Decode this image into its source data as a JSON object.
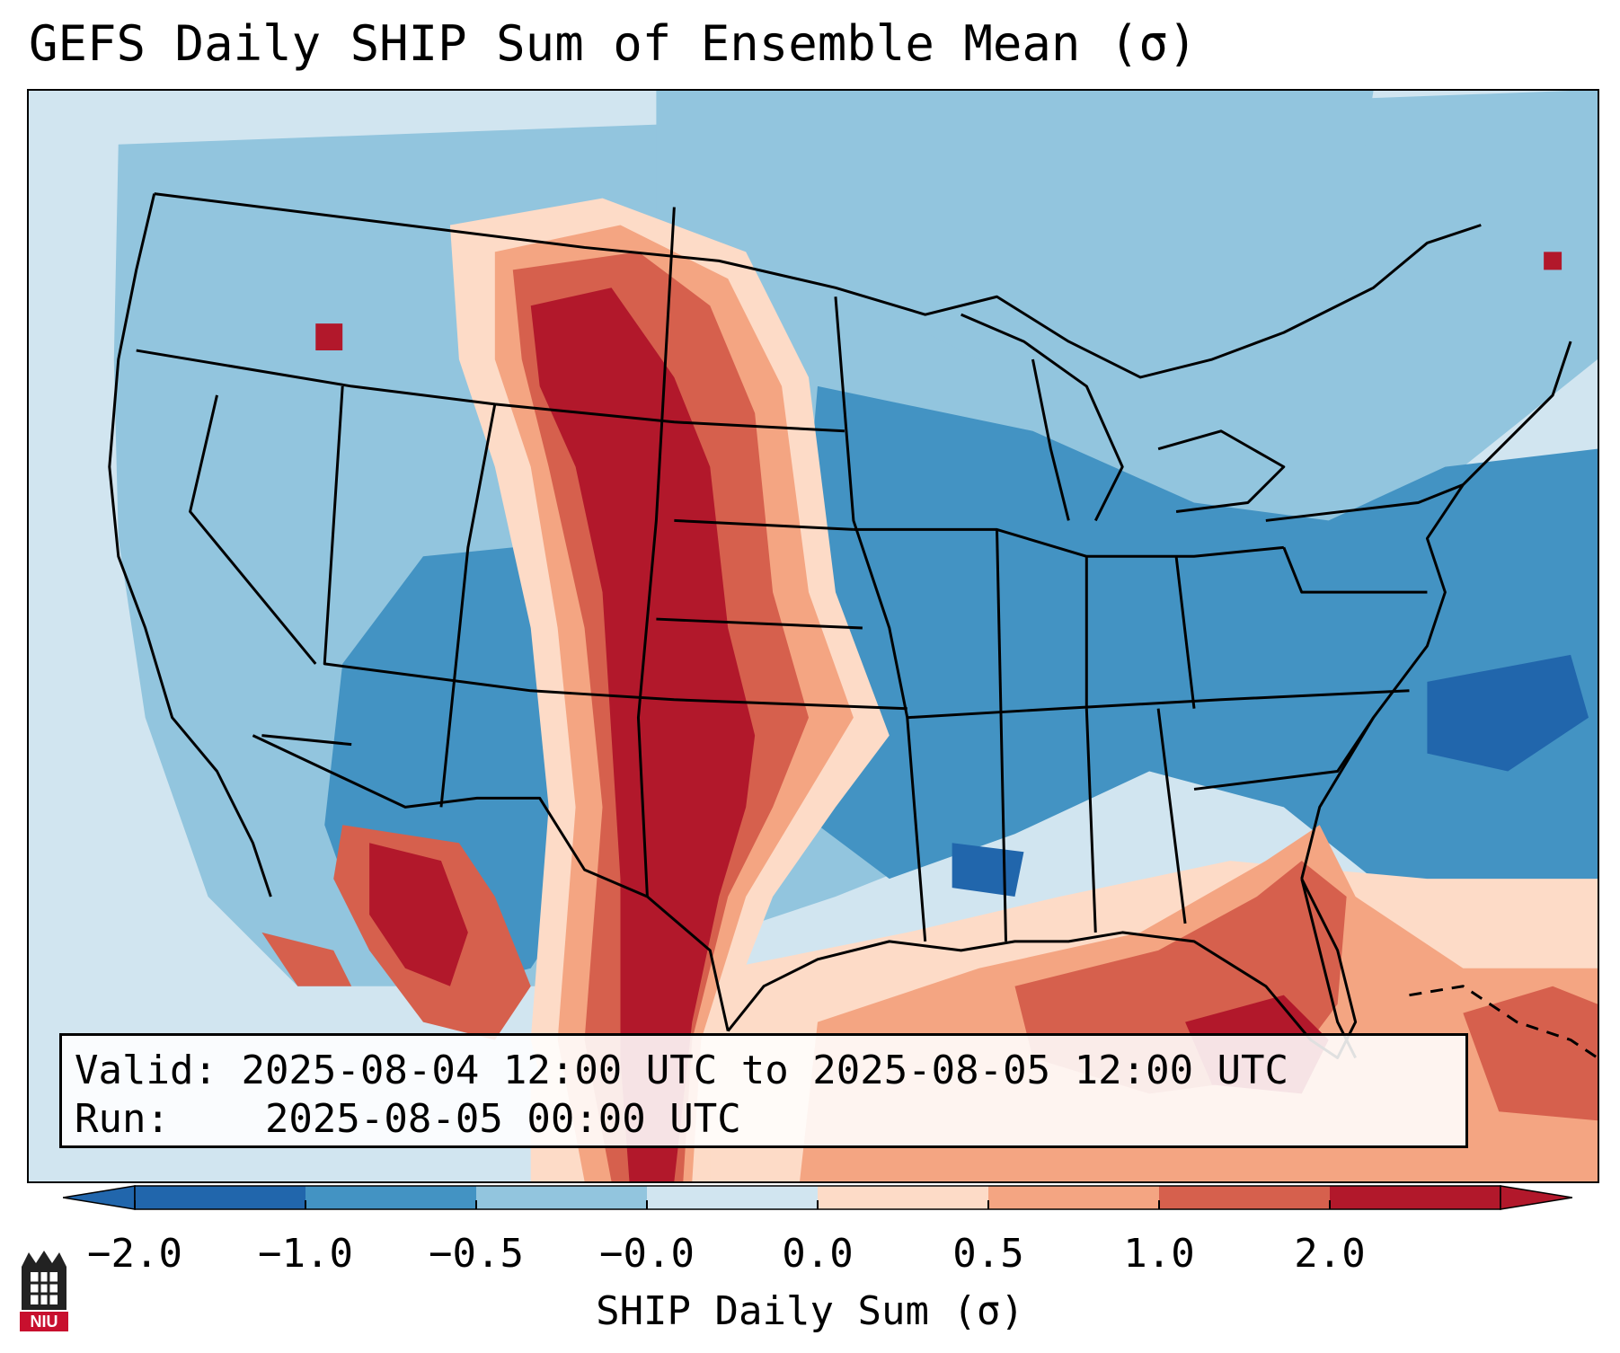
{
  "title": "GEFS Daily SHIP Sum of Ensemble Mean (σ)",
  "info": {
    "valid_label": "Valid:",
    "valid_value": "2025-08-04 12:00 UTC to 2025-08-05 12:00 UTC",
    "run_label": "Run:",
    "run_value": "2025-08-05 00:00 UTC"
  },
  "colorbar": {
    "label": "SHIP Daily Sum (σ)",
    "ticks": [
      "−2.0",
      "−1.0",
      "−0.5",
      "−0.0",
      "0.0",
      "0.5",
      "1.0",
      "2.0"
    ],
    "bin_colors": [
      "#2166ac",
      "#4393c3",
      "#92c5de",
      "#d1e5f0",
      "#fddbc7",
      "#f4a582",
      "#d6604d",
      "#b2182b"
    ],
    "extend": "both"
  },
  "logo": {
    "text": "NIU"
  },
  "colors": {
    "strong_neg": "#2166ac",
    "neg": "#4393c3",
    "weak_neg": "#92c5de",
    "near_zero_neg": "#d1e5f0",
    "near_zero_pos": "#fddbc7",
    "weak_pos": "#f4a582",
    "pos": "#d6604d",
    "strong_pos": "#b2182b"
  }
}
